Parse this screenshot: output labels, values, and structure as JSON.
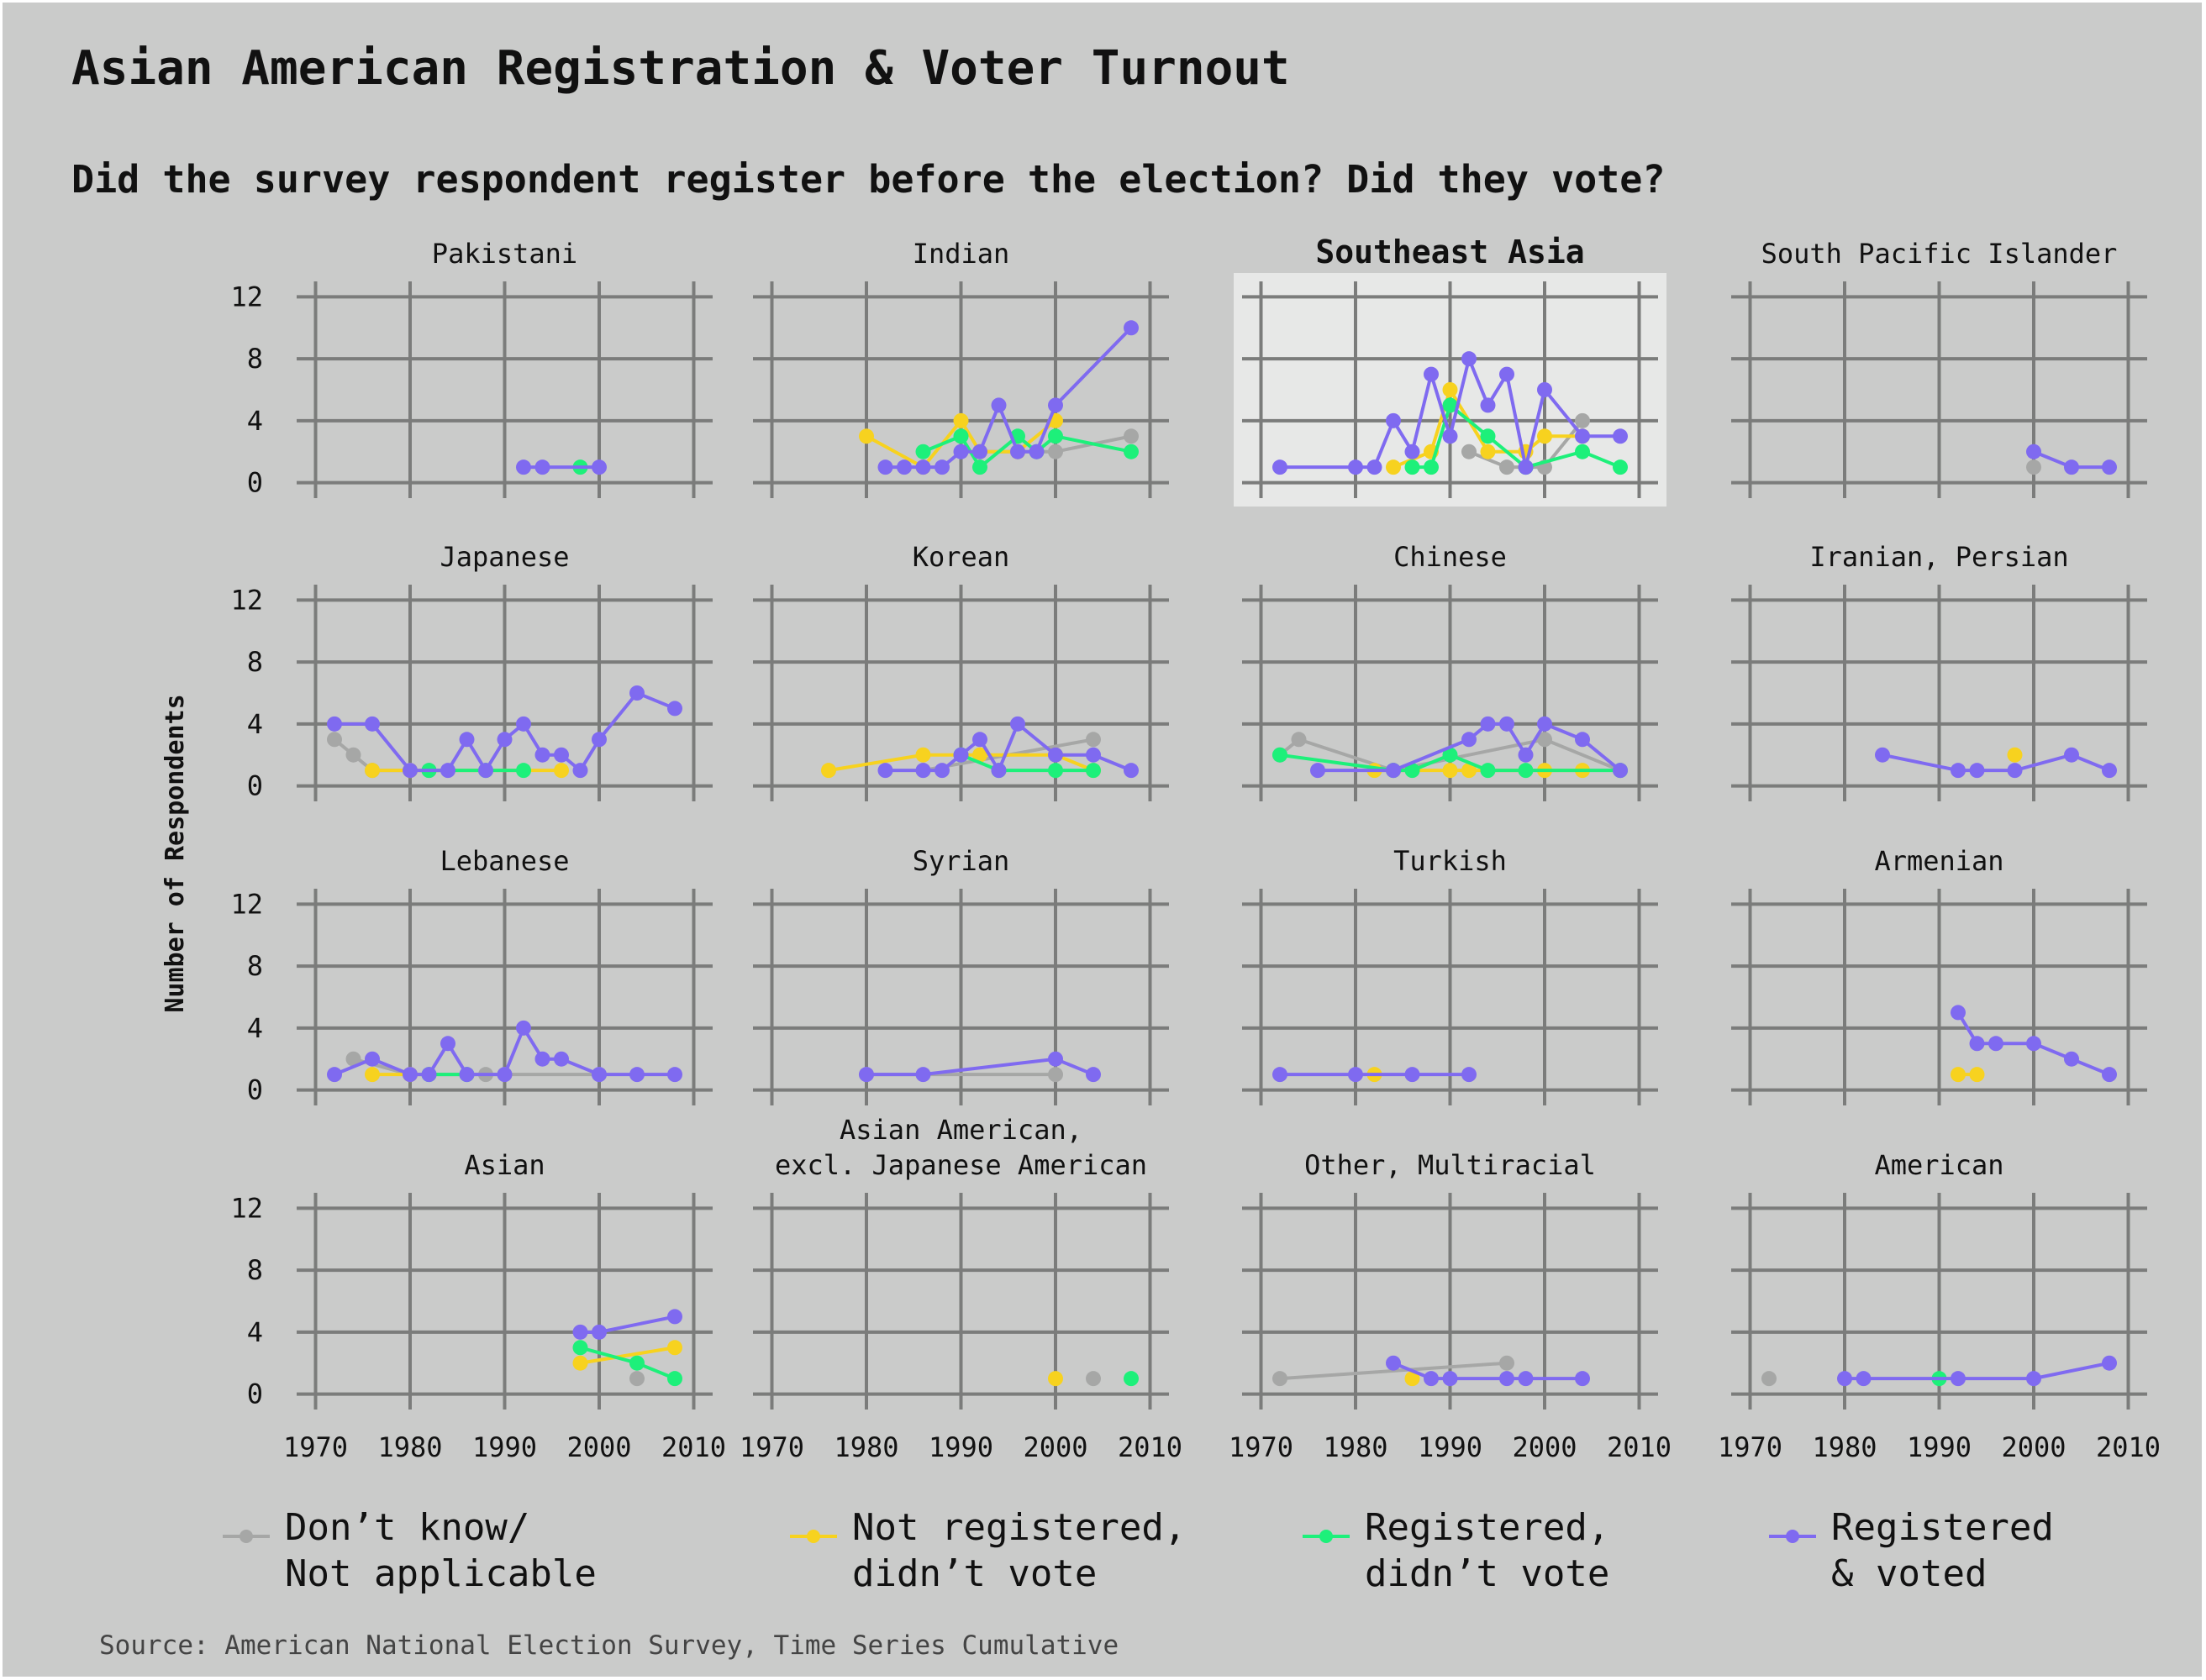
{
  "title": "Asian American Registration & Voter Turnout",
  "subtitle": "Did the survey respondent register before the election? Did they vote?",
  "source": "Source: American National Election Survey, Time Series Cumulative",
  "colors": {
    "background": "#cacbca",
    "highlight_panel": "#e7e8e7",
    "grid": "#7b7c7b",
    "dont_know": "#a6a7a6",
    "not_registered": "#f7d21f",
    "registered_no_vote": "#1df07a",
    "registered_voted": "#7f6af0"
  },
  "legend": [
    {
      "key": "dont_know",
      "label": "Don’t know/\nNot applicable"
    },
    {
      "key": "not_registered",
      "label": "Not registered,\ndidn’t vote"
    },
    {
      "key": "registered_no_vote",
      "label": "Registered,\ndidn’t vote"
    },
    {
      "key": "registered_voted",
      "label": "Registered\n& voted"
    }
  ],
  "chart_data": {
    "type": "line",
    "layout": "small multiples",
    "ylabel": "Number of Respondents",
    "xlim": [
      1968,
      2012
    ],
    "ylim": [
      -1,
      13
    ],
    "xticks": [
      1970,
      1980,
      1990,
      2000,
      2010
    ],
    "yticks": [
      0,
      4,
      8,
      12
    ],
    "highlighted_panel": "Southeast Asia",
    "series_names": [
      "Don’t know/Not applicable",
      "Not registered, didn’t vote",
      "Registered, didn’t vote",
      "Registered & voted"
    ],
    "panels": [
      {
        "title": "Pakistani",
        "series": {
          "dont_know": [],
          "not_registered": [],
          "registered_no_vote": [
            [
              1998,
              1
            ]
          ],
          "registered_voted": [
            [
              1992,
              1
            ],
            [
              1994,
              1
            ],
            [
              2000,
              1
            ]
          ]
        }
      },
      {
        "title": "Indian",
        "series": {
          "dont_know": [
            [
              1992,
              2
            ],
            [
              1996,
              2
            ],
            [
              2000,
              2
            ],
            [
              2008,
              3
            ]
          ],
          "not_registered": [
            [
              1980,
              3
            ],
            [
              1986,
              1
            ],
            [
              1990,
              4
            ],
            [
              1992,
              2
            ],
            [
              1996,
              2
            ],
            [
              2000,
              4
            ]
          ],
          "registered_no_vote": [
            [
              1986,
              2
            ],
            [
              1990,
              3
            ],
            [
              1992,
              1
            ],
            [
              1996,
              3
            ],
            [
              1998,
              2
            ],
            [
              2000,
              3
            ],
            [
              2008,
              2
            ]
          ],
          "registered_voted": [
            [
              1982,
              1
            ],
            [
              1984,
              1
            ],
            [
              1986,
              1
            ],
            [
              1988,
              1
            ],
            [
              1990,
              2
            ],
            [
              1992,
              2
            ],
            [
              1994,
              5
            ],
            [
              1996,
              2
            ],
            [
              1998,
              2
            ],
            [
              2000,
              5
            ],
            [
              2008,
              10
            ]
          ]
        }
      },
      {
        "title": "Southeast Asia",
        "series": {
          "dont_know": [
            [
              1992,
              2
            ],
            [
              1996,
              1
            ],
            [
              1998,
              1
            ],
            [
              2000,
              1
            ],
            [
              2004,
              4
            ]
          ],
          "not_registered": [
            [
              1984,
              1
            ],
            [
              1988,
              2
            ],
            [
              1990,
              6
            ],
            [
              1994,
              2
            ],
            [
              1998,
              2
            ],
            [
              2000,
              3
            ],
            [
              2004,
              3
            ]
          ],
          "registered_no_vote": [
            [
              1986,
              1
            ],
            [
              1988,
              1
            ],
            [
              1990,
              5
            ],
            [
              1994,
              3
            ],
            [
              1998,
              1
            ],
            [
              2004,
              2
            ],
            [
              2008,
              1
            ]
          ],
          "registered_voted": [
            [
              1972,
              1
            ],
            [
              1980,
              1
            ],
            [
              1982,
              1
            ],
            [
              1984,
              4
            ],
            [
              1986,
              2
            ],
            [
              1988,
              7
            ],
            [
              1990,
              3
            ],
            [
              1992,
              8
            ],
            [
              1994,
              5
            ],
            [
              1996,
              7
            ],
            [
              1998,
              1
            ],
            [
              2000,
              6
            ],
            [
              2004,
              3
            ],
            [
              2008,
              3
            ]
          ]
        }
      },
      {
        "title": "South Pacific Islander",
        "series": {
          "dont_know": [
            [
              2000,
              1
            ]
          ],
          "not_registered": [],
          "registered_no_vote": [],
          "registered_voted": [
            [
              2000,
              2
            ],
            [
              2004,
              1
            ],
            [
              2008,
              1
            ]
          ]
        }
      },
      {
        "title": "Japanese",
        "series": {
          "dont_know": [
            [
              1972,
              3
            ],
            [
              1974,
              2
            ],
            [
              1976,
              1
            ],
            [
              1980,
              1
            ],
            [
              1982,
              1
            ]
          ],
          "not_registered": [
            [
              1976,
              1
            ],
            [
              1980,
              1
            ],
            [
              1996,
              1
            ]
          ],
          "registered_no_vote": [
            [
              1982,
              1
            ],
            [
              1988,
              1
            ],
            [
              1992,
              1
            ]
          ],
          "registered_voted": [
            [
              1972,
              4
            ],
            [
              1976,
              4
            ],
            [
              1980,
              1
            ],
            [
              1984,
              1
            ],
            [
              1986,
              3
            ],
            [
              1988,
              1
            ],
            [
              1990,
              3
            ],
            [
              1992,
              4
            ],
            [
              1994,
              2
            ],
            [
              1996,
              2
            ],
            [
              1998,
              1
            ],
            [
              2000,
              3
            ],
            [
              2004,
              6
            ],
            [
              2008,
              5
            ]
          ]
        }
      },
      {
        "title": "Korean",
        "series": {
          "dont_know": [
            [
              1986,
              1
            ],
            [
              2004,
              3
            ]
          ],
          "not_registered": [
            [
              1976,
              1
            ],
            [
              1986,
              2
            ],
            [
              1992,
              2
            ],
            [
              2000,
              2
            ],
            [
              2004,
              1
            ]
          ],
          "registered_no_vote": [
            [
              1990,
              2
            ],
            [
              1994,
              1
            ],
            [
              2000,
              1
            ],
            [
              2004,
              1
            ]
          ],
          "registered_voted": [
            [
              1982,
              1
            ],
            [
              1986,
              1
            ],
            [
              1988,
              1
            ],
            [
              1990,
              2
            ],
            [
              1992,
              3
            ],
            [
              1994,
              1
            ],
            [
              1996,
              4
            ],
            [
              2000,
              2
            ],
            [
              2004,
              2
            ],
            [
              2008,
              1
            ]
          ]
        }
      },
      {
        "title": "Chinese",
        "series": {
          "dont_know": [
            [
              1972,
              2
            ],
            [
              1974,
              3
            ],
            [
              1984,
              1
            ],
            [
              2000,
              3
            ],
            [
              2008,
              1
            ]
          ],
          "not_registered": [
            [
              1982,
              1
            ],
            [
              1990,
              1
            ],
            [
              1992,
              1
            ],
            [
              2000,
              1
            ],
            [
              2004,
              1
            ]
          ],
          "registered_no_vote": [
            [
              1972,
              2
            ],
            [
              1984,
              1
            ],
            [
              1986,
              1
            ],
            [
              1990,
              2
            ],
            [
              1994,
              1
            ],
            [
              1998,
              1
            ],
            [
              2008,
              1
            ]
          ],
          "registered_voted": [
            [
              1976,
              1
            ],
            [
              1984,
              1
            ],
            [
              1992,
              3
            ],
            [
              1994,
              4
            ],
            [
              1996,
              4
            ],
            [
              1998,
              2
            ],
            [
              2000,
              4
            ],
            [
              2004,
              3
            ],
            [
              2008,
              1
            ]
          ]
        }
      },
      {
        "title": "Iranian, Persian",
        "series": {
          "dont_know": [],
          "not_registered": [
            [
              1998,
              2
            ]
          ],
          "registered_no_vote": [],
          "registered_voted": [
            [
              1984,
              2
            ],
            [
              1992,
              1
            ],
            [
              1994,
              1
            ],
            [
              1998,
              1
            ],
            [
              2004,
              2
            ],
            [
              2008,
              1
            ]
          ]
        }
      },
      {
        "title": "Lebanese",
        "series": {
          "dont_know": [
            [
              1974,
              2
            ],
            [
              1980,
              1
            ],
            [
              1988,
              1
            ],
            [
              1990,
              1
            ],
            [
              2000,
              1
            ]
          ],
          "not_registered": [
            [
              1976,
              1
            ],
            [
              1980,
              1
            ]
          ],
          "registered_no_vote": [
            [
              1982,
              1
            ],
            [
              1986,
              1
            ]
          ],
          "registered_voted": [
            [
              1972,
              1
            ],
            [
              1976,
              2
            ],
            [
              1980,
              1
            ],
            [
              1982,
              1
            ],
            [
              1984,
              3
            ],
            [
              1986,
              1
            ],
            [
              1990,
              1
            ],
            [
              1992,
              4
            ],
            [
              1994,
              2
            ],
            [
              1996,
              2
            ],
            [
              2000,
              1
            ],
            [
              2004,
              1
            ],
            [
              2008,
              1
            ]
          ]
        }
      },
      {
        "title": "Syrian",
        "series": {
          "dont_know": [
            [
              1980,
              1
            ],
            [
              2000,
              1
            ]
          ],
          "not_registered": [],
          "registered_no_vote": [],
          "registered_voted": [
            [
              1980,
              1
            ],
            [
              1986,
              1
            ],
            [
              2000,
              2
            ],
            [
              2004,
              1
            ]
          ]
        }
      },
      {
        "title": "Turkish",
        "series": {
          "dont_know": [],
          "not_registered": [
            [
              1982,
              1
            ]
          ],
          "registered_no_vote": [],
          "registered_voted": [
            [
              1972,
              1
            ],
            [
              1980,
              1
            ],
            [
              1986,
              1
            ],
            [
              1992,
              1
            ]
          ]
        }
      },
      {
        "title": "Armenian",
        "series": {
          "dont_know": [],
          "not_registered": [
            [
              1992,
              1
            ],
            [
              1994,
              1
            ]
          ],
          "registered_no_vote": [],
          "registered_voted": [
            [
              1992,
              5
            ],
            [
              1994,
              3
            ],
            [
              1996,
              3
            ],
            [
              2000,
              3
            ],
            [
              2004,
              2
            ],
            [
              2008,
              1
            ]
          ]
        }
      },
      {
        "title": "Asian",
        "series": {
          "dont_know": [
            [
              2004,
              1
            ]
          ],
          "not_registered": [
            [
              1998,
              2
            ],
            [
              2008,
              3
            ]
          ],
          "registered_no_vote": [
            [
              1998,
              3
            ],
            [
              2004,
              2
            ],
            [
              2008,
              1
            ]
          ],
          "registered_voted": [
            [
              1998,
              4
            ],
            [
              2000,
              4
            ],
            [
              2008,
              5
            ]
          ]
        }
      },
      {
        "title": "Asian American,\nexcl. Japanese American",
        "series": {
          "dont_know": [
            [
              2004,
              1
            ]
          ],
          "not_registered": [
            [
              2000,
              1
            ]
          ],
          "registered_no_vote": [
            [
              2008,
              1
            ]
          ],
          "registered_voted": []
        }
      },
      {
        "title": "Other, Multiracial",
        "series": {
          "dont_know": [
            [
              1972,
              1
            ],
            [
              1996,
              2
            ]
          ],
          "not_registered": [
            [
              1986,
              1
            ]
          ],
          "registered_no_vote": [],
          "registered_voted": [
            [
              1984,
              2
            ],
            [
              1988,
              1
            ],
            [
              1990,
              1
            ],
            [
              1996,
              1
            ],
            [
              1998,
              1
            ],
            [
              2004,
              1
            ]
          ]
        }
      },
      {
        "title": "American",
        "series": {
          "dont_know": [
            [
              1972,
              1
            ]
          ],
          "not_registered": [],
          "registered_no_vote": [
            [
              1990,
              1
            ]
          ],
          "registered_voted": [
            [
              1980,
              1
            ],
            [
              1982,
              1
            ],
            [
              1992,
              1
            ],
            [
              2000,
              1
            ],
            [
              2008,
              2
            ]
          ]
        }
      }
    ]
  }
}
